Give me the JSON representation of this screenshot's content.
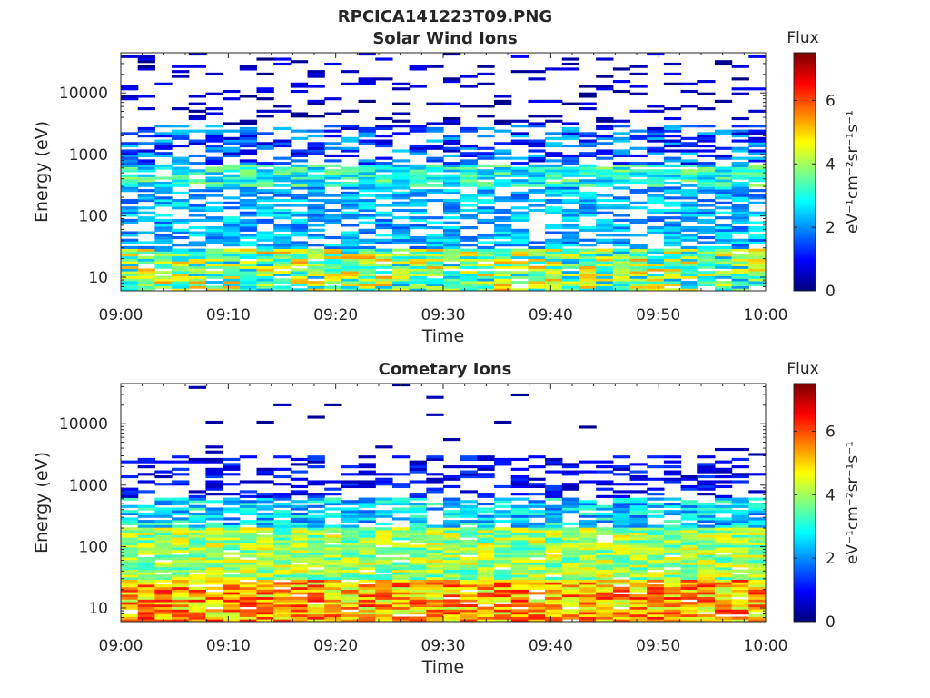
{
  "figure": {
    "title": "RPCICA141223T09.PNG"
  },
  "chart_data": [
    {
      "type": "heatmap",
      "title": "Solar Wind Ions",
      "xlabel": "Time",
      "ylabel": "Energy (eV)",
      "x_ticks": [
        "09:00",
        "09:10",
        "09:20",
        "09:30",
        "09:40",
        "09:50",
        "10:00"
      ],
      "xlim": [
        "09:00",
        "10:00"
      ],
      "y_ticks": [
        10,
        100,
        1000,
        10000
      ],
      "y_scale": "log",
      "ylim": [
        6,
        45000
      ],
      "colorbar": {
        "label": "Flux",
        "unit_label": "eV⁻¹cm⁻²sr⁻¹s⁻¹",
        "ticks": [
          0,
          2,
          4,
          6
        ],
        "range": [
          0,
          7.5
        ],
        "colormap": "jet"
      },
      "grid": false,
      "approx_flux_profile": [
        {
          "energy_range_eV": [
            6,
            30
          ],
          "typical_flux": [
            2,
            5.5
          ],
          "coverage": 0.9
        },
        {
          "energy_range_eV": [
            30,
            300
          ],
          "typical_flux": [
            1.5,
            3
          ],
          "coverage": 0.6
        },
        {
          "energy_range_eV": [
            300,
            700
          ],
          "typical_flux": [
            2,
            4
          ],
          "coverage": 0.85
        },
        {
          "energy_range_eV": [
            700,
            3000
          ],
          "typical_flux": [
            0.5,
            2.5
          ],
          "coverage": 0.5
        },
        {
          "energy_range_eV": [
            3000,
            45000
          ],
          "typical_flux": [
            0,
            1
          ],
          "coverage": 0.15
        }
      ]
    },
    {
      "type": "heatmap",
      "title": "Cometary Ions",
      "xlabel": "Time",
      "ylabel": "Energy (eV)",
      "x_ticks": [
        "09:00",
        "09:10",
        "09:20",
        "09:30",
        "09:40",
        "09:50",
        "10:00"
      ],
      "xlim": [
        "09:00",
        "10:00"
      ],
      "y_ticks": [
        10,
        100,
        1000,
        10000
      ],
      "y_scale": "log",
      "ylim": [
        6,
        45000
      ],
      "colorbar": {
        "label": "Flux",
        "unit_label": "eV⁻¹cm⁻²sr⁻¹s⁻¹",
        "ticks": [
          0,
          2,
          4,
          6
        ],
        "range": [
          0,
          7.5
        ],
        "colormap": "jet"
      },
      "grid": false,
      "approx_flux_profile": [
        {
          "energy_range_eV": [
            6,
            30
          ],
          "typical_flux": [
            4,
            6.5
          ],
          "coverage": 0.95
        },
        {
          "energy_range_eV": [
            30,
            200
          ],
          "typical_flux": [
            3,
            5
          ],
          "coverage": 0.95
        },
        {
          "energy_range_eV": [
            200,
            600
          ],
          "typical_flux": [
            1.5,
            3.5
          ],
          "coverage": 0.7
        },
        {
          "energy_range_eV": [
            600,
            3000
          ],
          "typical_flux": [
            0.3,
            1.5
          ],
          "coverage": 0.35
        },
        {
          "energy_range_eV": [
            3000,
            45000
          ],
          "typical_flux": [
            0,
            0.5
          ],
          "coverage": 0.01
        }
      ]
    }
  ]
}
